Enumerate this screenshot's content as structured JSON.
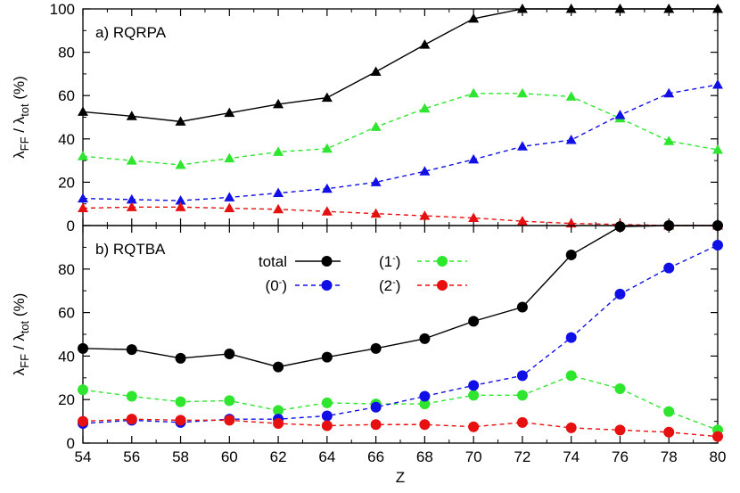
{
  "chart_data": [
    {
      "type": "line",
      "panel_label": "a) RQRPA",
      "ylabel": {
        "main": "λ",
        "sub1": "FF",
        "mid": " / λ",
        "sub2": "tot",
        "tail": " (%)"
      },
      "x": [
        54,
        56,
        58,
        60,
        62,
        64,
        66,
        68,
        70,
        72,
        74,
        76,
        78,
        80
      ],
      "ylim": [
        0,
        100
      ],
      "yticks": [
        0,
        20,
        40,
        60,
        80,
        100
      ],
      "marker": "triangle",
      "series": [
        {
          "key": "total",
          "color": "#000000",
          "dash": "solid",
          "values": [
            52.5,
            50.5,
            48,
            52,
            56,
            59,
            71,
            83.5,
            95.5,
            100,
            100,
            100,
            100,
            100
          ]
        },
        {
          "key": "1-",
          "color": "#2ee62e",
          "dash": "dashed",
          "values": [
            32,
            30,
            28,
            31,
            34,
            35.5,
            45.5,
            54,
            61,
            61,
            59.5,
            49.5,
            39,
            35
          ]
        },
        {
          "key": "0-",
          "color": "#1010e6",
          "dash": "dashed",
          "values": [
            12.5,
            12,
            11.5,
            13,
            15,
            17,
            20,
            25,
            30.5,
            36.5,
            39.5,
            51,
            61,
            65
          ]
        },
        {
          "key": "2-",
          "color": "#e61010",
          "dash": "dashed",
          "values": [
            8,
            8.5,
            8.5,
            8,
            7.5,
            6.5,
            5.5,
            4.5,
            3.5,
            2,
            1,
            0.5,
            0,
            0
          ]
        }
      ]
    },
    {
      "type": "line",
      "panel_label": "b) RQTBA",
      "ylabel": {
        "main": "λ",
        "sub1": "FF",
        "mid": " / λ",
        "sub2": "tot",
        "tail": " (%)"
      },
      "xlabel": "Z",
      "x": [
        54,
        56,
        58,
        60,
        62,
        64,
        66,
        68,
        70,
        72,
        74,
        76,
        78,
        80
      ],
      "xticks": [
        54,
        56,
        58,
        60,
        62,
        64,
        66,
        68,
        70,
        72,
        74,
        76,
        78,
        80
      ],
      "ylim": [
        0,
        100
      ],
      "yticks": [
        0,
        20,
        40,
        60,
        80
      ],
      "marker": "circle",
      "legend": [
        {
          "label": "total",
          "sup": "",
          "series": "total",
          "color": "#000000",
          "dash": "solid"
        },
        {
          "label": "(1",
          "sup": "-",
          "tail": ")",
          "series": "1-",
          "color": "#2ee62e",
          "dash": "dashed"
        },
        {
          "label": "(0",
          "sup": "-",
          "tail": ")",
          "series": "0-",
          "color": "#1010e6",
          "dash": "dashed"
        },
        {
          "label": "(2",
          "sup": "-",
          "tail": ")",
          "series": "2-",
          "color": "#e61010",
          "dash": "dashed"
        }
      ],
      "series": [
        {
          "key": "total",
          "color": "#000000",
          "dash": "solid",
          "values": [
            43.5,
            43,
            39,
            41,
            35,
            39.5,
            43.5,
            48,
            56,
            62.5,
            86.5,
            99.5,
            100,
            100
          ]
        },
        {
          "key": "1-",
          "color": "#2ee62e",
          "dash": "dashed",
          "values": [
            24.5,
            21.5,
            19,
            19.5,
            15,
            18.5,
            18,
            18,
            22,
            22,
            31,
            25,
            14.5,
            6
          ]
        },
        {
          "key": "0-",
          "color": "#1010e6",
          "dash": "dashed",
          "values": [
            9,
            10.5,
            9.5,
            11,
            11,
            12.5,
            16.5,
            21.5,
            26.5,
            31,
            48.5,
            68.5,
            80.5,
            91
          ]
        },
        {
          "key": "2-",
          "color": "#e61010",
          "dash": "dashed",
          "values": [
            10,
            11,
            10.5,
            10.5,
            9,
            8,
            8.5,
            8.5,
            7.5,
            9.5,
            7,
            6,
            5,
            3
          ]
        }
      ]
    }
  ]
}
